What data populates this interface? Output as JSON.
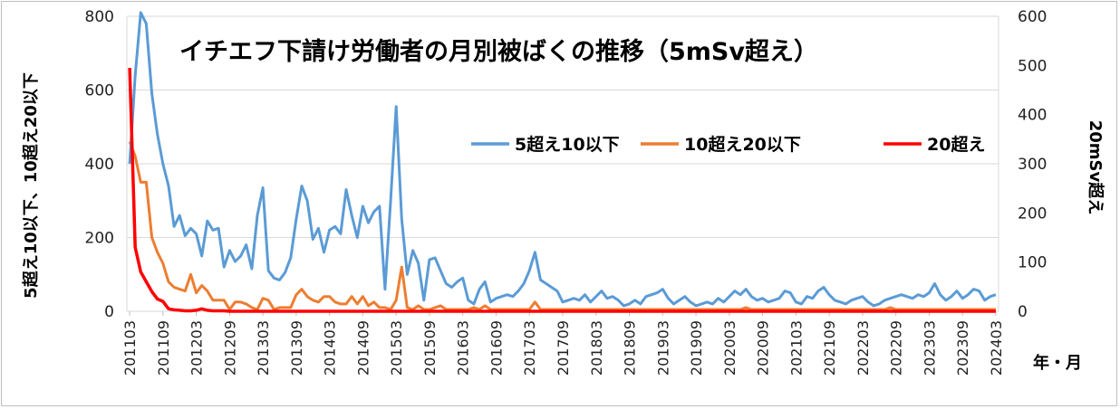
{
  "chart_data": {
    "type": "line",
    "title": "イチエフ下請け労働者の月別被ばくの推移（5mSv超え）",
    "xlabel": "年・月",
    "ylabel_left": "5超え10以下、10超え20以下",
    "ylabel_right": "20mSv超え",
    "ylim_left": [
      0,
      800
    ],
    "ylim_right": [
      0,
      600
    ],
    "yticks_left": [
      0,
      200,
      400,
      600,
      800
    ],
    "yticks_right": [
      0,
      100,
      200,
      300,
      400,
      500,
      600
    ],
    "x_start": "201103",
    "x_tick_labels": [
      "201103",
      "201109",
      "201203",
      "201209",
      "201303",
      "201309",
      "201403",
      "201409",
      "201503",
      "201509",
      "201603",
      "201609",
      "201703",
      "201709",
      "201803",
      "201809",
      "201903",
      "201909",
      "202003",
      "202009",
      "202103",
      "202109",
      "202203",
      "202209",
      "202303",
      "202309",
      "202403"
    ],
    "grid": true,
    "legend_position": "top-right",
    "series": [
      {
        "name": "5超え10以下",
        "color": "#5b9bd5",
        "axis": "left",
        "values": [
          400,
          640,
          810,
          780,
          590,
          480,
          400,
          340,
          230,
          260,
          205,
          225,
          210,
          150,
          245,
          220,
          225,
          120,
          165,
          135,
          150,
          180,
          115,
          260,
          335,
          110,
          90,
          85,
          105,
          145,
          250,
          340,
          300,
          195,
          225,
          160,
          220,
          230,
          210,
          330,
          260,
          200,
          285,
          240,
          270,
          285,
          60,
          300,
          555,
          250,
          100,
          165,
          130,
          30,
          140,
          145,
          110,
          75,
          65,
          80,
          90,
          30,
          20,
          60,
          80,
          25,
          35,
          40,
          45,
          40,
          55,
          75,
          110,
          160,
          85,
          75,
          65,
          55,
          25,
          30,
          35,
          30,
          45,
          25,
          40,
          55,
          35,
          40,
          30,
          15,
          20,
          30,
          20,
          40,
          45,
          50,
          60,
          35,
          20,
          30,
          40,
          25,
          15,
          20,
          25,
          20,
          35,
          25,
          40,
          55,
          45,
          60,
          40,
          30,
          35,
          25,
          30,
          35,
          55,
          50,
          25,
          20,
          40,
          35,
          55,
          65,
          45,
          30,
          25,
          20,
          30,
          35,
          40,
          25,
          15,
          20,
          30,
          35,
          40,
          45,
          40,
          35,
          45,
          40,
          50,
          75,
          45,
          30,
          40,
          55,
          35,
          45,
          60,
          55,
          30,
          40,
          45
        ]
      },
      {
        "name": "10超え20以下",
        "color": "#ed7d31",
        "axis": "left",
        "values": [
          460,
          420,
          350,
          350,
          200,
          160,
          130,
          80,
          65,
          60,
          55,
          100,
          50,
          70,
          55,
          30,
          30,
          30,
          5,
          25,
          25,
          20,
          10,
          5,
          35,
          30,
          5,
          10,
          10,
          10,
          45,
          60,
          40,
          30,
          25,
          40,
          40,
          25,
          20,
          20,
          40,
          20,
          40,
          15,
          25,
          10,
          10,
          5,
          30,
          120,
          10,
          5,
          15,
          5,
          5,
          10,
          15,
          5,
          5,
          5,
          5,
          5,
          10,
          5,
          15,
          5,
          5,
          5,
          5,
          5,
          5,
          5,
          5,
          25,
          5,
          5,
          5,
          5,
          5,
          5,
          5,
          5,
          5,
          5,
          5,
          5,
          5,
          5,
          5,
          5,
          5,
          5,
          5,
          5,
          5,
          5,
          5,
          5,
          5,
          5,
          5,
          5,
          5,
          5,
          5,
          5,
          5,
          5,
          5,
          5,
          5,
          10,
          5,
          5,
          5,
          5,
          5,
          5,
          5,
          5,
          5,
          5,
          5,
          5,
          5,
          5,
          5,
          5,
          5,
          5,
          5,
          5,
          5,
          5,
          5,
          5,
          5,
          10,
          5,
          5,
          5,
          5,
          5,
          5,
          5,
          5,
          5,
          5,
          5,
          5,
          5,
          5,
          5,
          5,
          5,
          5,
          5
        ]
      },
      {
        "name": "20超え",
        "color": "#ff0000",
        "axis": "right",
        "values": [
          495,
          130,
          80,
          60,
          40,
          25,
          20,
          5,
          3,
          2,
          1,
          1,
          2,
          5,
          2,
          1,
          1,
          1,
          0,
          0,
          0,
          0,
          0,
          0,
          0,
          0,
          0,
          0,
          0,
          0,
          0,
          0,
          0,
          0,
          0,
          0,
          0,
          0,
          0,
          0,
          0,
          0,
          0,
          0,
          0,
          0,
          0,
          0,
          0,
          0,
          0,
          0,
          0,
          0,
          0,
          0,
          0,
          0,
          0,
          0,
          0,
          0,
          0,
          0,
          0,
          0,
          0,
          0,
          0,
          0,
          0,
          0,
          0,
          0,
          0,
          0,
          0,
          0,
          0,
          0,
          0,
          0,
          0,
          0,
          0,
          0,
          0,
          0,
          0,
          0,
          0,
          0,
          0,
          0,
          0,
          0,
          0,
          0,
          0,
          0,
          0,
          0,
          0,
          0,
          0,
          0,
          0,
          0,
          0,
          0,
          0,
          0,
          0,
          0,
          0,
          0,
          0,
          0,
          0,
          0,
          0,
          0,
          0,
          0,
          0,
          0,
          0,
          0,
          0,
          0,
          0,
          0,
          0,
          0,
          0,
          0,
          0,
          0,
          0,
          0,
          0,
          0,
          0,
          0,
          0,
          0,
          0,
          0,
          0,
          0,
          0,
          0,
          0,
          0,
          0,
          0,
          0
        ]
      }
    ]
  }
}
